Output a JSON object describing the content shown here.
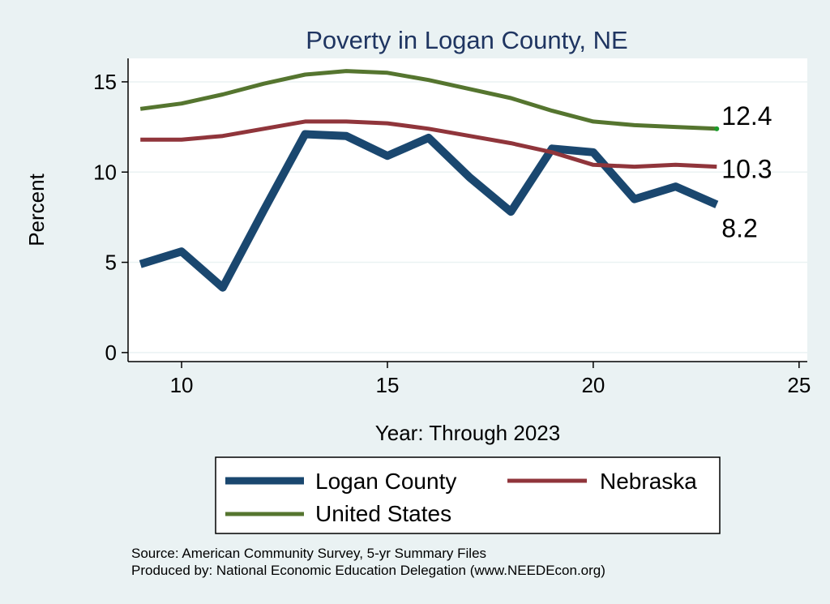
{
  "chart_data": {
    "type": "line",
    "title": "Poverty in Logan County, NE",
    "xlabel": "Year: Through 2023",
    "ylabel": "Percent",
    "xlim": [
      8.7,
      25.2
    ],
    "ylim": [
      -0.5,
      16.3
    ],
    "xticks": [
      10,
      15,
      20,
      25
    ],
    "yticks": [
      0,
      5,
      10,
      15
    ],
    "grid": true,
    "series": [
      {
        "name": "Logan County",
        "color": "#1a476f",
        "x": [
          9,
          10,
          11,
          12,
          13,
          14,
          15,
          16,
          17,
          18,
          19,
          20,
          21,
          22,
          23
        ],
        "values": [
          4.9,
          5.6,
          3.6,
          7.9,
          12.1,
          12.0,
          10.9,
          11.9,
          9.7,
          7.8,
          11.3,
          11.1,
          8.5,
          9.2,
          8.2
        ],
        "end_label": "8.2"
      },
      {
        "name": "Nebraska",
        "color": "#90353b",
        "x": [
          9,
          10,
          11,
          12,
          13,
          14,
          15,
          16,
          17,
          18,
          19,
          20,
          21,
          22,
          23
        ],
        "values": [
          11.8,
          11.8,
          12.0,
          12.4,
          12.8,
          12.8,
          12.7,
          12.4,
          12.0,
          11.6,
          11.1,
          10.4,
          10.3,
          10.4,
          10.3
        ],
        "end_label": "10.3"
      },
      {
        "name": "United States",
        "color": "#55752f",
        "x": [
          9,
          10,
          11,
          12,
          13,
          14,
          15,
          16,
          17,
          18,
          19,
          20,
          21,
          22,
          23
        ],
        "values": [
          13.5,
          13.8,
          14.3,
          14.9,
          15.4,
          15.6,
          15.5,
          15.1,
          14.6,
          14.1,
          13.4,
          12.8,
          12.6,
          12.5,
          12.4
        ],
        "end_label": "12.4"
      }
    ],
    "legend": {
      "position": "bottom",
      "entries": [
        "Logan County",
        "Nebraska",
        "United States"
      ]
    },
    "notes": [
      "Source: American Community Survey, 5-yr Summary Files",
      "Produced by: National Economic Education Delegation (www.NEEDEcon.org)"
    ]
  }
}
